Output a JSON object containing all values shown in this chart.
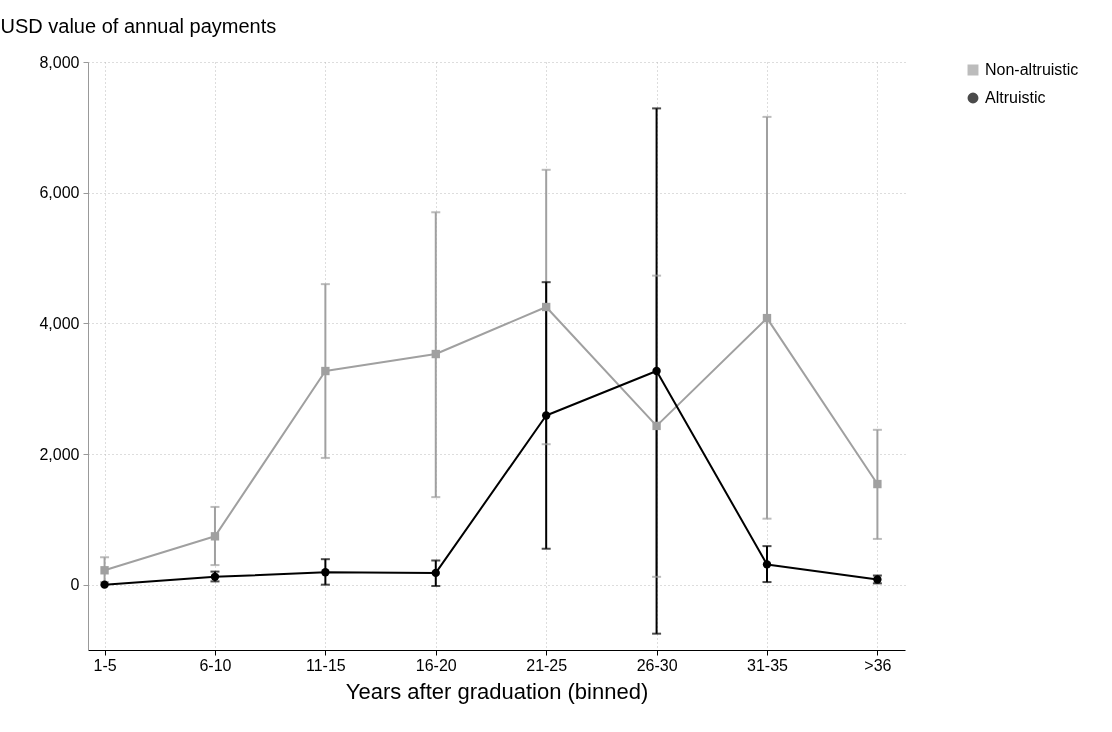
{
  "chart_data": {
    "type": "line",
    "xlabel": "Years after graduation (binned)",
    "ylabel": "USD value of annual payments",
    "categories": [
      "1-5",
      "6-10",
      "11-15",
      "16-20",
      "21-25",
      "26-30",
      "31-35",
      ">36"
    ],
    "series": [
      {
        "name": "Non-altruistic",
        "color": "#a0a0a0",
        "marker": "square",
        "values": [
          220,
          740,
          3270,
          3530,
          4250,
          2430,
          4080,
          1540
        ],
        "errors": [
          [
            40,
            420
          ],
          [
            300,
            1190
          ],
          [
            1940,
            4600
          ],
          [
            1340,
            5700
          ],
          [
            2150,
            6350
          ],
          [
            120,
            4730
          ],
          [
            1010,
            7160
          ],
          [
            700,
            2370
          ]
        ]
      },
      {
        "name": "Altruistic",
        "color": "#000000",
        "marker": "circle",
        "values": [
          0,
          120,
          190,
          180,
          2590,
          3270,
          310,
          80
        ],
        "errors": [
          null,
          [
            50,
            200
          ],
          [
            0,
            390
          ],
          [
            -20,
            370
          ],
          [
            550,
            4630
          ],
          [
            -750,
            7290
          ],
          [
            40,
            590
          ],
          [
            20,
            140
          ]
        ]
      }
    ],
    "ylim": [
      -1000,
      8000
    ],
    "yticks": [
      {
        "value": 0,
        "label": "0"
      },
      {
        "value": 2000,
        "label": "2,000"
      },
      {
        "value": 4000,
        "label": "4,000"
      },
      {
        "value": 6000,
        "label": "6,000"
      },
      {
        "value": 8000,
        "label": "8,000"
      }
    ],
    "grid": true,
    "legend": "right"
  }
}
